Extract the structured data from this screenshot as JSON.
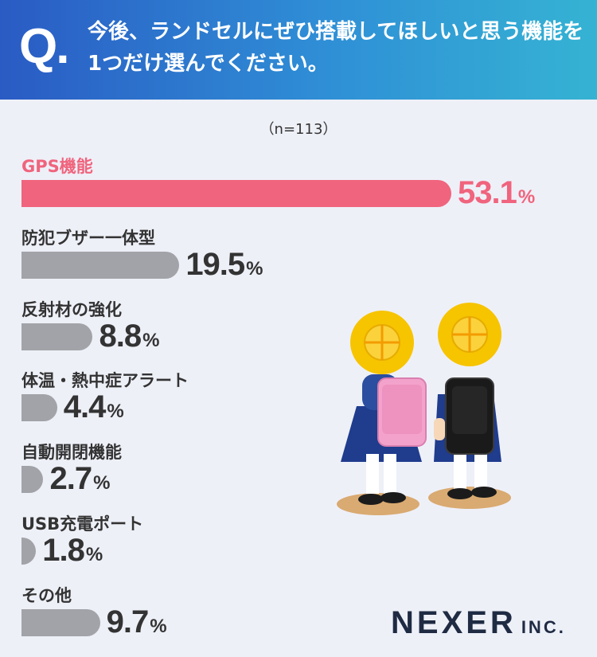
{
  "header": {
    "q_mark": "Q",
    "q_dot": ".",
    "question": "今後、ランドセルにぜひ搭載してほしいと思う機能を1つだけ選んでください。"
  },
  "sample_note": "（n=113）",
  "percent_sign": "%",
  "colors": {
    "highlight": "#f0647d",
    "bar": "#a2a3a8",
    "header_start": "#2a5bc4",
    "header_end": "#35b3d3"
  },
  "chart_data": {
    "type": "bar",
    "orientation": "horizontal",
    "categories": [
      "GPS機能",
      "防犯ブザー一体型",
      "反射材の強化",
      "体温・熱中症アラート",
      "自動開閉機能",
      "USB充電ポート",
      "その他"
    ],
    "values": [
      53.1,
      19.5,
      8.8,
      4.4,
      2.7,
      1.8,
      9.7
    ],
    "value_labels": [
      "53.1",
      "19.5",
      "8.8",
      "4.4",
      "2.7",
      "1.8",
      "9.7"
    ],
    "highlight_index": 0,
    "xlim": [
      0,
      100
    ]
  },
  "logo": {
    "main": "NEXER",
    "sub": "INC."
  }
}
